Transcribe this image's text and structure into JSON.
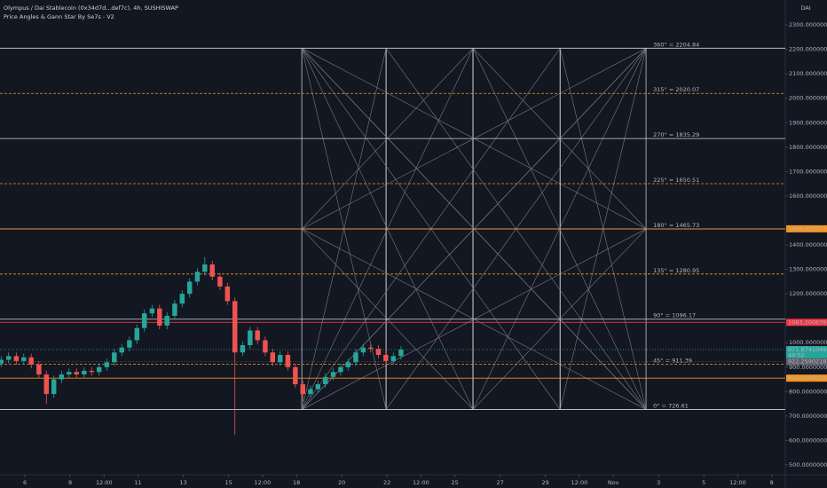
{
  "chart_data": {
    "type": "candlestick",
    "title": "Olympus / Dai Stablecoin (0x34d7d...def7c), 4h, SUSHISWAP",
    "subtitle": "Price Angles & Gann Star By Se7s - V2",
    "axis_unit": "DAI",
    "countdown": "49:52",
    "x": [
      4.95,
      5.28,
      5.62,
      5.95,
      6.28,
      6.62,
      6.95,
      7.28,
      7.62,
      7.95,
      8.28,
      8.62,
      8.95,
      9.28,
      9.62,
      9.95,
      10.28,
      10.62,
      10.95,
      11.28,
      11.62,
      11.95,
      12.28,
      12.62,
      12.95,
      13.28,
      13.62,
      13.95,
      14.28,
      14.62,
      14.95,
      15.28,
      15.62,
      15.95,
      16.28,
      16.62,
      16.95,
      17.28,
      17.62,
      17.95,
      18.28,
      18.62,
      18.95,
      19.28,
      19.62,
      19.95,
      20.28,
      20.62,
      20.95,
      21.28,
      21.62,
      21.95,
      22.28,
      22.62
    ],
    "open": [
      915,
      930,
      945,
      925,
      940,
      910,
      870,
      790,
      850,
      870,
      880,
      870,
      885,
      880,
      900,
      920,
      960,
      980,
      1010,
      1060,
      1120,
      1140,
      1070,
      1110,
      1160,
      1200,
      1250,
      1290,
      1320,
      1270,
      1230,
      1170,
      960,
      990,
      1050,
      1010,
      960,
      920,
      950,
      900,
      830,
      790,
      810,
      830,
      860,
      880,
      900,
      920,
      960,
      980,
      975,
      950,
      925,
      945
    ],
    "high": [
      945,
      960,
      960,
      955,
      955,
      925,
      885,
      865,
      885,
      895,
      895,
      900,
      900,
      915,
      935,
      975,
      995,
      1025,
      1075,
      1135,
      1155,
      1155,
      1125,
      1175,
      1215,
      1265,
      1305,
      1350,
      1335,
      1285,
      1245,
      1185,
      1005,
      1065,
      1065,
      1025,
      975,
      965,
      965,
      915,
      845,
      825,
      845,
      875,
      895,
      915,
      935,
      975,
      995,
      995,
      990,
      965,
      960,
      987
    ],
    "low": [
      900,
      915,
      910,
      910,
      895,
      855,
      750,
      775,
      835,
      855,
      855,
      855,
      865,
      865,
      885,
      905,
      945,
      965,
      995,
      1045,
      1105,
      1055,
      1055,
      1095,
      1145,
      1185,
      1235,
      1275,
      1255,
      1215,
      1155,
      624,
      945,
      975,
      995,
      945,
      905,
      905,
      885,
      815,
      760,
      775,
      795,
      815,
      845,
      865,
      885,
      905,
      945,
      960,
      935,
      910,
      910,
      930
    ],
    "close": [
      930,
      945,
      925,
      940,
      910,
      870,
      790,
      850,
      870,
      880,
      870,
      885,
      880,
      900,
      920,
      960,
      980,
      1010,
      1060,
      1120,
      1140,
      1070,
      1110,
      1160,
      1200,
      1250,
      1290,
      1320,
      1270,
      1230,
      1170,
      960,
      990,
      1050,
      1010,
      960,
      920,
      950,
      900,
      830,
      790,
      810,
      830,
      860,
      880,
      900,
      920,
      960,
      980,
      975,
      950,
      925,
      945,
      972
    ],
    "up_color": "#26a69a",
    "down_color": "#ef5350",
    "xlim": [
      4.9,
      39.6
    ],
    "ylim": [
      460,
      2402
    ],
    "xticks": [
      6,
      8,
      {
        "value": 9.5,
        "label": "12:00"
      },
      11,
      13,
      15,
      {
        "value": 16.5,
        "label": "12:00"
      },
      18,
      20,
      22,
      {
        "value": 23.5,
        "label": "12:00"
      },
      25,
      27,
      29,
      {
        "value": 30.5,
        "label": "12:00"
      },
      {
        "value": 32,
        "label": "Nov"
      },
      {
        "value": 34,
        "label": "3"
      },
      {
        "value": 36,
        "label": "5"
      },
      {
        "value": 37.5,
        "label": "12:00"
      },
      {
        "value": 39,
        "label": "8"
      }
    ],
    "yticks": [
      {
        "value": 2300,
        "label": "2300.0000000000"
      },
      {
        "value": 2200,
        "label": "2200.0000000000"
      },
      {
        "value": 2100,
        "label": "2100.0000000000"
      },
      {
        "value": 2000,
        "label": "2000.0000000000"
      },
      {
        "value": 1900,
        "label": "1900.0000000000"
      },
      {
        "value": 1800,
        "label": "1800.0000000000"
      },
      {
        "value": 1700,
        "label": "1700.0000000000"
      },
      {
        "value": 1600,
        "label": "1600.0000000000"
      },
      {
        "value": 1400,
        "label": "1400.0000000000"
      },
      {
        "value": 1300,
        "label": "1300.0000000000"
      },
      {
        "value": 1200,
        "label": "1200.0000000000"
      },
      {
        "value": 1000,
        "label": "1000.0000000000"
      },
      {
        "value": 900,
        "label": "900.0000000000"
      },
      {
        "value": 800,
        "label": "800.0000000000"
      },
      {
        "value": 700,
        "label": "700.0000000000"
      },
      {
        "value": 600,
        "label": "600.0000000000"
      },
      {
        "value": 500,
        "label": "500.0000000000"
      }
    ],
    "gann": {
      "box_x": [
        18.24,
        21.96,
        25.8,
        29.65,
        33.45
      ],
      "line_color": "#787b86",
      "levels": [
        {
          "value": 726.61,
          "label": "0° = 726.61",
          "color": "#d1d4dc",
          "dashed": false
        },
        {
          "value": 911.39,
          "label": "45° = 911.39",
          "color": "#f7931a",
          "dashed": true
        },
        {
          "value": 1096.17,
          "label": "90° = 1096.17",
          "color": "#d1d4dc",
          "dashed": false
        },
        {
          "value": 1280.95,
          "label": "135° = 1280.95",
          "color": "#f7931a",
          "dashed": true
        },
        {
          "value": 1465.73,
          "label": "180° = 1465.73",
          "color": "#d1d4dc",
          "dashed": false
        },
        {
          "value": 1650.51,
          "label": "225° = 1650.51",
          "color": "#f7931a",
          "dashed": true
        },
        {
          "value": 1835.29,
          "label": "270° = 1835.29",
          "color": "#d1d4dc",
          "dashed": false
        },
        {
          "value": 2020.07,
          "label": "315° = 2020.07",
          "color": "#f7931a",
          "dashed": true
        },
        {
          "value": 2204.84,
          "label": "360° = 2204.84",
          "color": "#d1d4dc",
          "dashed": false
        }
      ]
    },
    "price_lines": [
      {
        "value": 1465.9285771696,
        "color": "#f7931a",
        "dashed": false
      },
      {
        "value": 1083.2006390659,
        "color": "#f23645",
        "dashed": false
      },
      {
        "value": 971.8741049617,
        "color": "#26a69a",
        "dashed": true
      },
      {
        "value": 922.2590218223,
        "color": "#5d606b",
        "dashed": true
      },
      {
        "value": 855.0368019717,
        "color": "#f7931a",
        "dashed": false
      }
    ]
  }
}
